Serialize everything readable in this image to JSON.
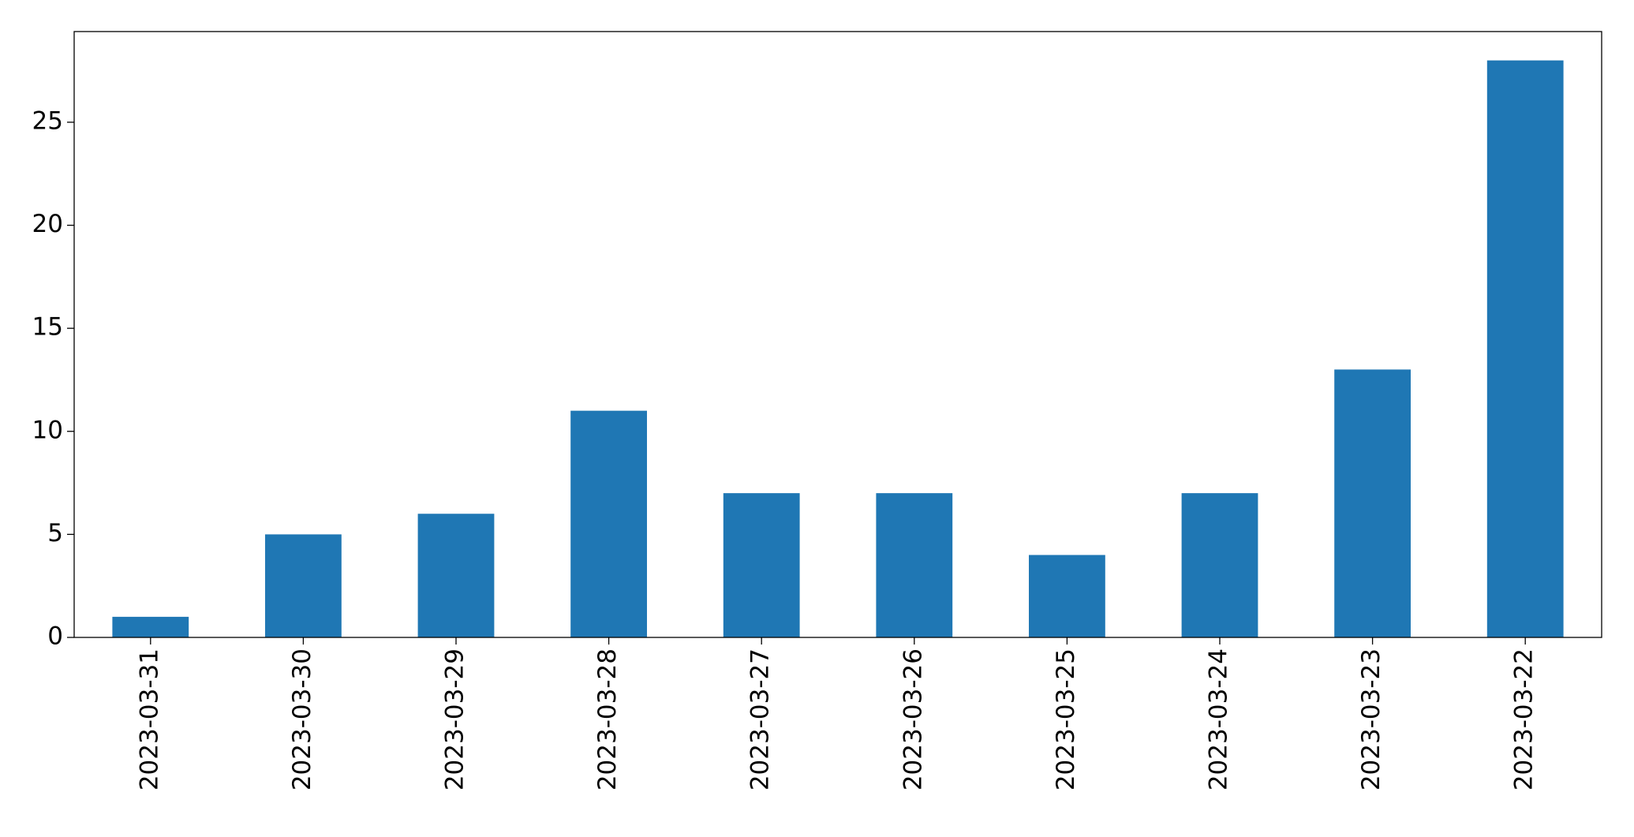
{
  "chart_data": {
    "type": "bar",
    "categories": [
      "2023-03-31",
      "2023-03-30",
      "2023-03-29",
      "2023-03-28",
      "2023-03-27",
      "2023-03-26",
      "2023-03-25",
      "2023-03-24",
      "2023-03-23",
      "2023-03-22"
    ],
    "values": [
      1,
      5,
      6,
      11,
      7,
      7,
      4,
      7,
      13,
      28
    ],
    "color": "#1f77b4",
    "ylim": [
      0,
      29.4
    ],
    "yticks": [
      0,
      5,
      10,
      15,
      20,
      25
    ],
    "grid": false
  }
}
